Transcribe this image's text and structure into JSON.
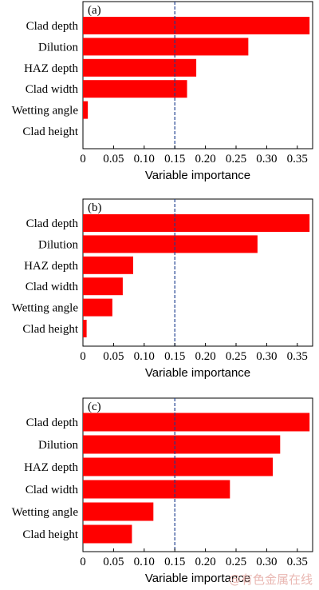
{
  "chart_data": [
    {
      "type": "bar",
      "orientation": "horizontal",
      "panel_label": "(a)",
      "categories": [
        "Clad depth",
        "Dilution",
        "HAZ depth",
        "Clad width",
        "Wetting angle",
        "Clad height"
      ],
      "values": [
        0.37,
        0.27,
        0.185,
        0.17,
        0.008,
        0.0
      ],
      "xlabel": "Variable importance",
      "xlim": [
        0,
        0.375
      ],
      "xticks": [
        "0",
        "0.05",
        "0.10",
        "0.15",
        "0.20",
        "0.25",
        "0.30",
        "0.35"
      ],
      "threshold": 0.15,
      "threshold_color": "#1f3f8f",
      "bar_color": "#ff0000",
      "grid": false
    },
    {
      "type": "bar",
      "orientation": "horizontal",
      "panel_label": "(b)",
      "categories": [
        "Clad depth",
        "Dilution",
        "HAZ depth",
        "Clad width",
        "Wetting angle",
        "Clad height"
      ],
      "values": [
        0.37,
        0.285,
        0.082,
        0.065,
        0.048,
        0.006
      ],
      "xlabel": "Variable importance",
      "xlim": [
        0,
        0.375
      ],
      "xticks": [
        "0",
        "0.05",
        "0.10",
        "0.15",
        "0.20",
        "0.25",
        "0.30",
        "0.35"
      ],
      "threshold": 0.15,
      "threshold_color": "#1f3f8f",
      "bar_color": "#ff0000",
      "grid": false
    },
    {
      "type": "bar",
      "orientation": "horizontal",
      "panel_label": "(c)",
      "categories": [
        "Clad depth",
        "Dilution",
        "HAZ depth",
        "Clad width",
        "Wetting angle",
        "Clad height"
      ],
      "values": [
        0.37,
        0.322,
        0.31,
        0.24,
        0.115,
        0.08
      ],
      "xlabel": "Variable importance",
      "xlim": [
        0,
        0.375
      ],
      "xticks": [
        "0",
        "0.05",
        "0.10",
        "0.15",
        "0.20",
        "0.25",
        "0.30",
        "0.35"
      ],
      "threshold": 0.15,
      "threshold_color": "#1f3f8f",
      "bar_color": "#ff0000",
      "grid": false
    }
  ],
  "watermark": "@有色金属在线"
}
